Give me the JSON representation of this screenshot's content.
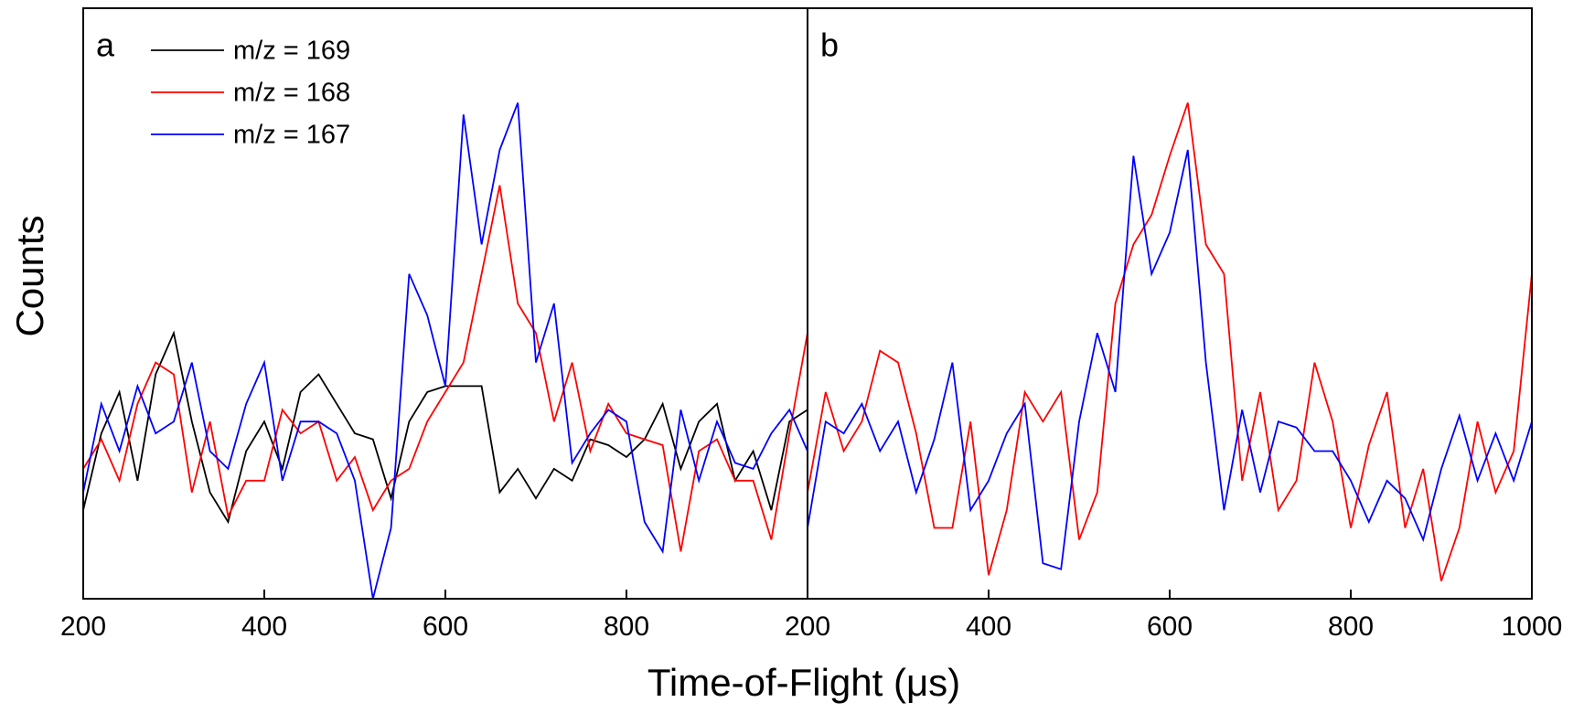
{
  "xlabel": "Time-of-Flight (μs)",
  "ylabel": "Counts",
  "chart_data": [
    {
      "type": "line",
      "title": "a",
      "x": [
        200,
        220,
        240,
        260,
        280,
        300,
        320,
        340,
        360,
        380,
        400,
        420,
        440,
        460,
        480,
        500,
        520,
        540,
        560,
        580,
        600,
        620,
        640,
        660,
        680,
        700,
        720,
        740,
        760,
        780,
        800,
        820,
        840,
        860,
        880,
        900,
        920,
        940,
        960,
        980,
        1000
      ],
      "xlim": [
        200,
        1000
      ],
      "ylim": [
        0,
        100
      ],
      "xticks": [
        200,
        400,
        600,
        800
      ],
      "legend": "upper left",
      "series": [
        {
          "name": "m/z = 169",
          "color": "#000000",
          "values": [
            15,
            28,
            35,
            20,
            38,
            45,
            30,
            18,
            13,
            25,
            30,
            22,
            35,
            38,
            33,
            28,
            27,
            17,
            30,
            35,
            36,
            36,
            36,
            18,
            22,
            17,
            22,
            20,
            27,
            26,
            24,
            27,
            33,
            22,
            30,
            33,
            20,
            25,
            15,
            30,
            32
          ]
        },
        {
          "name": "m/z = 168",
          "color": "#ff0000",
          "values": [
            22,
            27,
            20,
            33,
            40,
            38,
            18,
            30,
            14,
            20,
            20,
            32,
            28,
            30,
            20,
            24,
            15,
            20,
            22,
            30,
            35,
            40,
            55,
            70,
            50,
            45,
            30,
            40,
            25,
            33,
            28,
            27,
            26,
            8,
            25,
            27,
            20,
            20,
            10,
            28,
            45
          ]
        },
        {
          "name": "m/z = 167",
          "color": "#0000ff",
          "values": [
            18,
            33,
            25,
            36,
            28,
            30,
            40,
            25,
            22,
            33,
            40,
            20,
            30,
            30,
            28,
            20,
            0,
            12,
            55,
            48,
            36,
            82,
            60,
            76,
            84,
            40,
            50,
            23,
            28,
            32,
            30,
            13,
            8,
            32,
            20,
            30,
            23,
            22,
            28,
            32,
            25
          ]
        }
      ]
    },
    {
      "type": "line",
      "title": "b",
      "x": [
        200,
        220,
        240,
        260,
        280,
        300,
        320,
        340,
        360,
        380,
        400,
        420,
        440,
        460,
        480,
        500,
        520,
        540,
        560,
        580,
        600,
        620,
        640,
        660,
        680,
        700,
        720,
        740,
        760,
        780,
        800,
        820,
        840,
        860,
        880,
        900,
        920,
        940,
        960,
        980,
        1000
      ],
      "xlim": [
        200,
        1000
      ],
      "ylim": [
        0,
        100
      ],
      "xticks": [
        200,
        400,
        600,
        800,
        1000
      ],
      "series": [
        {
          "name": "m/z = 168",
          "color": "#ff0000",
          "values": [
            18,
            35,
            25,
            30,
            42,
            40,
            28,
            12,
            12,
            30,
            4,
            15,
            35,
            30,
            35,
            10,
            18,
            50,
            60,
            65,
            75,
            84,
            60,
            55,
            20,
            35,
            15,
            20,
            40,
            30,
            12,
            26,
            35,
            12,
            22,
            3,
            12,
            30,
            18,
            25,
            55
          ]
        },
        {
          "name": "m/z = 167",
          "color": "#0000ff",
          "values": [
            12,
            30,
            28,
            33,
            25,
            30,
            18,
            27,
            40,
            15,
            20,
            28,
            33,
            6,
            5,
            30,
            45,
            35,
            75,
            55,
            62,
            76,
            40,
            15,
            32,
            18,
            30,
            29,
            25,
            25,
            20,
            13,
            20,
            17,
            10,
            22,
            31,
            20,
            28,
            20,
            30
          ]
        }
      ]
    }
  ]
}
